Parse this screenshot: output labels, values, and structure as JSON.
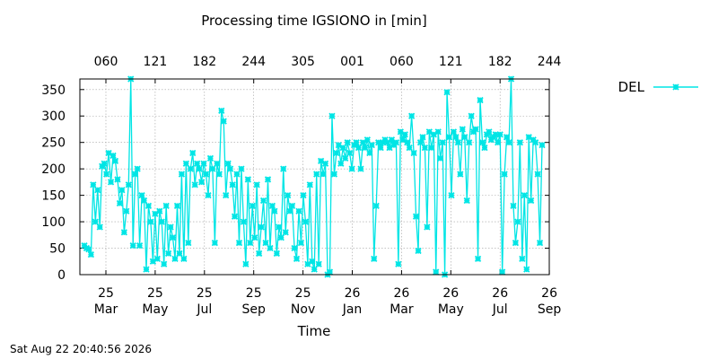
{
  "chart_data": {
    "type": "line",
    "title": "Processing time IGSIONO in [min]",
    "xlabel": "Time",
    "ylabel": "",
    "ylim": [
      0,
      370
    ],
    "yticks": [
      0,
      50,
      100,
      150,
      200,
      250,
      300,
      350
    ],
    "grid": true,
    "legend_position": "top-right (outside plot)",
    "x_bottom_ticks": [
      {
        "line1": "25",
        "line2": "Mar"
      },
      {
        "line1": "25",
        "line2": "May"
      },
      {
        "line1": "25",
        "line2": "Jul"
      },
      {
        "line1": "25",
        "line2": "Sep"
      },
      {
        "line1": "25",
        "line2": "Nov"
      },
      {
        "line1": "26",
        "line2": "Jan"
      },
      {
        "line1": "26",
        "line2": "Mar"
      },
      {
        "line1": "26",
        "line2": "May"
      },
      {
        "line1": "26",
        "line2": "Jul"
      },
      {
        "line1": "26",
        "line2": "Sep"
      }
    ],
    "x_top_ticks": [
      "060",
      "121",
      "182",
      "244",
      "305",
      "001",
      "060",
      "121",
      "182",
      "244"
    ],
    "series": [
      {
        "name": "DEL",
        "color": "#00e5e5",
        "marker": "x-cross",
        "values": [
          55,
          50,
          48,
          38,
          170,
          100,
          160,
          90,
          205,
          210,
          190,
          230,
          175,
          225,
          215,
          180,
          135,
          160,
          80,
          120,
          170,
          370,
          55,
          190,
          200,
          55,
          150,
          140,
          10,
          130,
          100,
          25,
          115,
          30,
          120,
          100,
          20,
          130,
          40,
          90,
          70,
          30,
          130,
          40,
          190,
          30,
          210,
          60,
          200,
          230,
          170,
          210,
          200,
          175,
          210,
          190,
          150,
          220,
          200,
          60,
          210,
          190,
          310,
          290,
          150,
          210,
          200,
          170,
          110,
          190,
          60,
          200,
          100,
          20,
          180,
          60,
          130,
          70,
          170,
          40,
          90,
          140,
          60,
          180,
          50,
          130,
          120,
          40,
          90,
          70,
          200,
          80,
          150,
          120,
          130,
          50,
          30,
          120,
          60,
          150,
          100,
          20,
          170,
          25,
          10,
          190,
          20,
          215,
          190,
          210,
          0,
          5,
          300,
          190,
          230,
          245,
          210,
          240,
          220,
          250,
          230,
          200,
          245,
          250,
          240,
          200,
          250,
          240,
          255,
          230,
          245,
          30,
          130,
          250,
          240,
          250,
          255,
          250,
          240,
          255,
          245,
          250,
          20,
          270,
          255,
          265,
          250,
          240,
          300,
          230,
          110,
          45,
          250,
          260,
          240,
          90,
          270,
          240,
          265,
          5,
          270,
          220,
          250,
          0,
          345,
          260,
          150,
          270,
          260,
          250,
          190,
          275,
          260,
          140,
          250,
          300,
          270,
          275,
          30,
          330,
          250,
          240,
          265,
          270,
          255,
          260,
          265,
          250,
          265,
          5,
          190,
          260,
          250,
          370,
          130,
          60,
          100,
          250,
          30,
          150,
          10,
          260,
          140,
          255,
          250,
          190,
          60,
          245
        ]
      }
    ]
  },
  "footer": {
    "timestamp": "Sat Aug 22 20:40:56 2026"
  }
}
